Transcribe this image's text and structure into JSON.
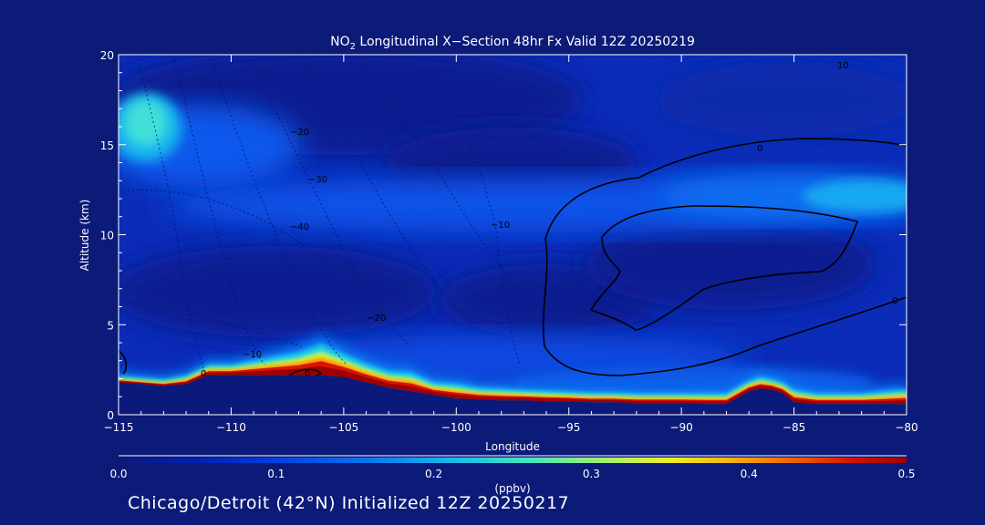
{
  "chart_data": {
    "type": "heatmap",
    "title_main": "NO",
    "title_sub": "2",
    "title_rest": " Longitudinal X−Section 48hr  Fx Valid 12Z 20250219",
    "xlabel": "Longitude",
    "ylabel": "Altitude (km)",
    "xlim": [
      -115,
      -80
    ],
    "ylim": [
      0,
      20
    ],
    "xticks": [
      -115,
      -110,
      -105,
      -100,
      -95,
      -90,
      -85,
      -80
    ],
    "xtick_labels": [
      "−115",
      "−110",
      "−105",
      "−100",
      "−95",
      "−90",
      "−85",
      "−80"
    ],
    "yticks": [
      0,
      5,
      10,
      15,
      20
    ],
    "ytick_labels": [
      "0",
      "5",
      "10",
      "15",
      "20"
    ],
    "colorbar": {
      "label": "(ppbv)",
      "range": [
        0.0,
        0.5
      ],
      "ticks": [
        0.0,
        0.1,
        0.2,
        0.3,
        0.4,
        0.5
      ],
      "tick_labels": [
        "0.0",
        "0.1",
        "0.2",
        "0.3",
        "0.4",
        "0.5"
      ],
      "colors": [
        "#0b1a7a",
        "#0030d0",
        "#0a5cf0",
        "#18b4f0",
        "#38e4c8",
        "#b8f070",
        "#f8f020",
        "#f8a010",
        "#e03000",
        "#a80000"
      ]
    },
    "surface_profile": {
      "lon": [
        -115,
        -114,
        -113,
        -112,
        -111,
        -110,
        -109,
        -108,
        -107,
        -106,
        -105,
        -104,
        -103,
        -102,
        -101,
        -100,
        -99,
        -98,
        -97,
        -96,
        -95,
        -94,
        -93,
        -92,
        -91,
        -90,
        -89,
        -88,
        -87,
        -86.5,
        -86,
        -85.5,
        -85,
        -84,
        -83,
        -82,
        -81,
        -80
      ],
      "alt_km": [
        1.8,
        1.7,
        1.6,
        1.7,
        2.2,
        2.2,
        2.2,
        2.2,
        2.2,
        2.2,
        2.1,
        1.8,
        1.5,
        1.3,
        1.1,
        0.9,
        0.85,
        0.8,
        0.8,
        0.75,
        0.75,
        0.7,
        0.7,
        0.65,
        0.65,
        0.65,
        0.6,
        0.6,
        1.3,
        1.45,
        1.4,
        1.2,
        0.7,
        0.6,
        0.6,
        0.6,
        0.6,
        0.6
      ]
    },
    "boundary_layer": {
      "lon": [
        -115,
        -114,
        -113,
        -112,
        -111,
        -110,
        -109,
        -108,
        -107,
        -106,
        -105,
        -104,
        -103,
        -102,
        -101,
        -100,
        -99,
        -98,
        -97,
        -96,
        -95,
        -94,
        -93,
        -92,
        -91,
        -90,
        -89,
        -88,
        -87,
        -86.5,
        -86,
        -85.5,
        -85,
        -84,
        -83,
        -82,
        -81,
        -80
      ],
      "alt_km": [
        2.0,
        1.9,
        1.8,
        2.0,
        2.6,
        2.6,
        2.8,
        3.0,
        3.2,
        3.6,
        3.1,
        2.6,
        2.2,
        2.1,
        1.6,
        1.5,
        1.3,
        1.25,
        1.2,
        1.15,
        1.1,
        1.05,
        1.05,
        1.0,
        1.0,
        1.0,
        1.0,
        1.0,
        1.7,
        1.9,
        1.8,
        1.6,
        1.2,
        1.0,
        1.0,
        1.0,
        1.1,
        1.2
      ]
    },
    "contour_labels": [
      "10",
      "0",
      "−20",
      "−30",
      "−40",
      "−10",
      "−20",
      "−10",
      "0",
      "0",
      "0"
    ]
  },
  "footer": {
    "station": "Chicago/Detroit (42°N) Initialized 12Z 20250217"
  }
}
